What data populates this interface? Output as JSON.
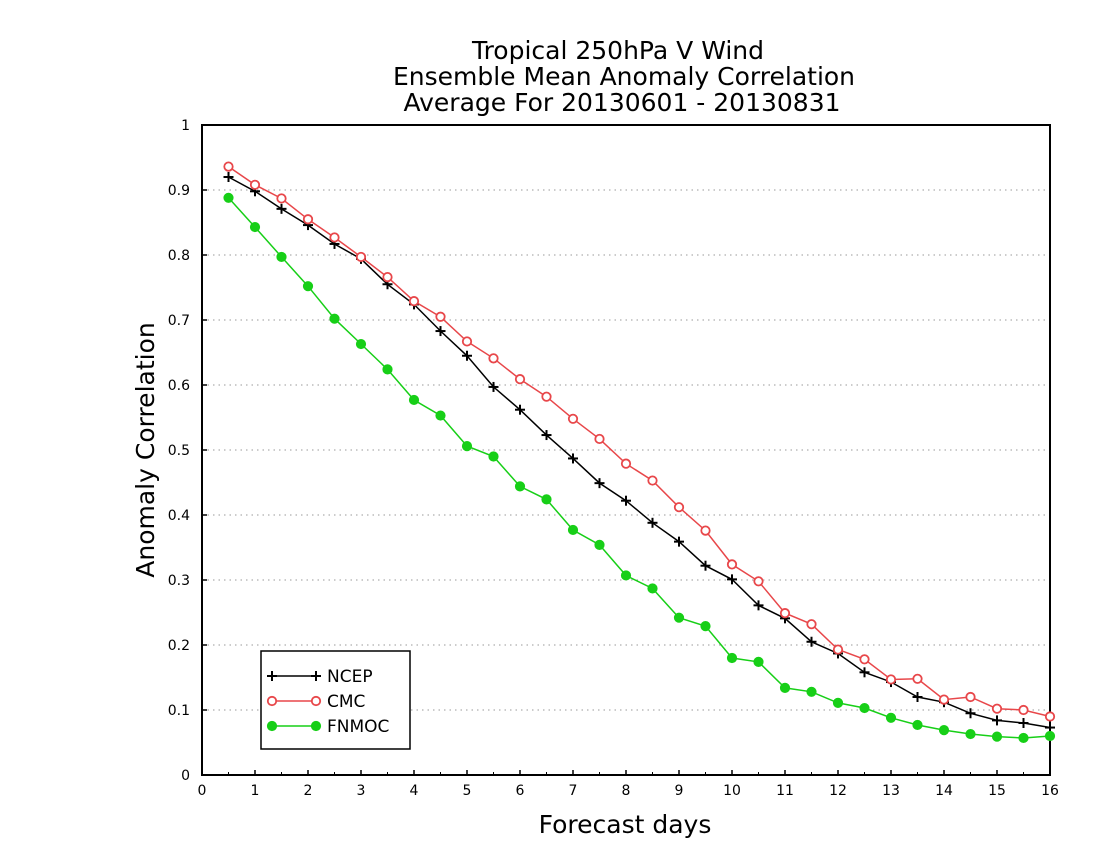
{
  "chart_data": {
    "type": "line",
    "title": [
      "Tropical 250hPa V Wind",
      "Ensemble Mean Anomaly Correlation",
      "Average For 20130601 - 20130831"
    ],
    "xlabel": "Forecast days",
    "ylabel": "Anomaly Correlation",
    "xlim": [
      0,
      16
    ],
    "ylim": [
      0,
      1
    ],
    "xticks": [
      "0",
      "1",
      "2",
      "3",
      "4",
      "5",
      "6",
      "7",
      "8",
      "9",
      "10",
      "11",
      "12",
      "13",
      "14",
      "15",
      "16"
    ],
    "yticks": [
      "0",
      "0.1",
      "0.2",
      "0.3",
      "0.4",
      "0.5",
      "0.6",
      "0.7",
      "0.8",
      "0.9",
      "1"
    ],
    "grid": "horizontal dotted",
    "legend_position": "bottom-left",
    "x": [
      0.5,
      1,
      1.5,
      2,
      2.5,
      3,
      3.5,
      4,
      4.5,
      5,
      5.5,
      6,
      6.5,
      7,
      7.5,
      8,
      8.5,
      9,
      9.5,
      10,
      10.5,
      11,
      11.5,
      12,
      12.5,
      13,
      13.5,
      14,
      14.5,
      15,
      15.5,
      16
    ],
    "series": [
      {
        "name": "NCEP",
        "color": "#000000",
        "marker": "plus",
        "values": [
          0.92,
          0.898,
          0.871,
          0.846,
          0.817,
          0.794,
          0.755,
          0.724,
          0.683,
          0.645,
          0.597,
          0.562,
          0.523,
          0.487,
          0.449,
          0.422,
          0.388,
          0.359,
          0.322,
          0.301,
          0.261,
          0.241,
          0.205,
          0.187,
          0.158,
          0.143,
          0.12,
          0.112,
          0.095,
          0.084,
          0.08,
          0.073
        ]
      },
      {
        "name": "CMC",
        "color": "#e8474a",
        "marker": "open-circle",
        "values": [
          0.936,
          0.908,
          0.887,
          0.855,
          0.827,
          0.797,
          0.766,
          0.729,
          0.705,
          0.667,
          0.641,
          0.609,
          0.582,
          0.548,
          0.517,
          0.479,
          0.453,
          0.412,
          0.376,
          0.324,
          0.298,
          0.249,
          0.232,
          0.193,
          0.178,
          0.147,
          0.148,
          0.116,
          0.12,
          0.102,
          0.1,
          0.09
        ]
      },
      {
        "name": "FNMOC",
        "color": "#17cf17",
        "marker": "filled-circle",
        "values": [
          0.888,
          0.843,
          0.797,
          0.752,
          0.702,
          0.663,
          0.624,
          0.577,
          0.553,
          0.506,
          0.49,
          0.444,
          0.424,
          0.377,
          0.354,
          0.307,
          0.287,
          0.242,
          0.229,
          0.18,
          0.174,
          0.134,
          0.128,
          0.111,
          0.103,
          0.088,
          0.077,
          0.069,
          0.063,
          0.059,
          0.057,
          0.06
        ]
      }
    ]
  }
}
